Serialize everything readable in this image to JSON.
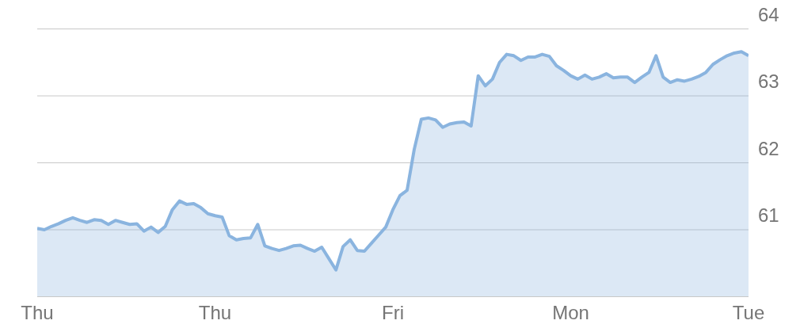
{
  "chart_data": {
    "type": "area",
    "categories": [
      "Thu",
      null,
      null,
      null,
      null,
      null,
      null,
      null,
      null,
      null,
      null,
      null,
      null,
      null,
      null,
      null,
      null,
      null,
      null,
      null,
      null,
      null,
      null,
      null,
      null,
      "Thu",
      null,
      null,
      null,
      null,
      null,
      null,
      null,
      null,
      null,
      null,
      null,
      null,
      null,
      null,
      null,
      null,
      null,
      null,
      null,
      null,
      null,
      null,
      null,
      null,
      "Fri",
      null,
      null,
      null,
      null,
      null,
      null,
      null,
      null,
      null,
      null,
      null,
      null,
      null,
      null,
      null,
      null,
      null,
      null,
      null,
      null,
      null,
      null,
      null,
      null,
      "Mon",
      null,
      null,
      null,
      null,
      null,
      null,
      null,
      null,
      null,
      null,
      null,
      null,
      null,
      null,
      null,
      null,
      null,
      null,
      null,
      null,
      null,
      null,
      null,
      null,
      "Tue"
    ],
    "series": [
      {
        "color": "#8ab4df",
        "values": [
          61.02,
          61.0,
          61.05,
          61.09,
          61.14,
          61.18,
          61.14,
          61.11,
          61.15,
          61.14,
          61.08,
          61.14,
          61.11,
          61.08,
          61.09,
          60.98,
          61.04,
          60.96,
          61.05,
          61.3,
          61.43,
          61.38,
          61.39,
          61.33,
          61.24,
          61.21,
          61.19,
          60.91,
          60.85,
          60.87,
          60.88,
          61.08,
          60.76,
          60.72,
          60.69,
          60.72,
          60.76,
          60.77,
          60.72,
          60.68,
          60.74,
          60.57,
          60.4,
          60.75,
          60.85,
          60.69,
          60.68,
          60.8,
          60.92,
          61.04,
          61.3,
          61.51,
          61.59,
          62.2,
          62.65,
          62.67,
          62.64,
          62.53,
          62.58,
          62.6,
          62.61,
          62.55,
          63.3,
          63.15,
          63.25,
          63.5,
          63.62,
          63.6,
          63.53,
          63.58,
          63.58,
          63.62,
          63.59,
          63.45,
          63.38,
          63.3,
          63.25,
          63.31,
          63.25,
          63.28,
          63.33,
          63.27,
          63.28,
          63.28,
          63.2,
          63.28,
          63.35,
          63.6,
          63.28,
          63.2,
          63.24,
          63.22,
          63.25,
          63.29,
          63.35,
          63.47,
          63.54,
          63.6,
          63.64,
          63.66,
          63.6
        ]
      }
    ],
    "ylim": [
      60,
      64
    ],
    "yticks": [
      {
        "value": 60,
        "label": null
      },
      61,
      62,
      63,
      64
    ],
    "grid": "y",
    "legend": false
  }
}
